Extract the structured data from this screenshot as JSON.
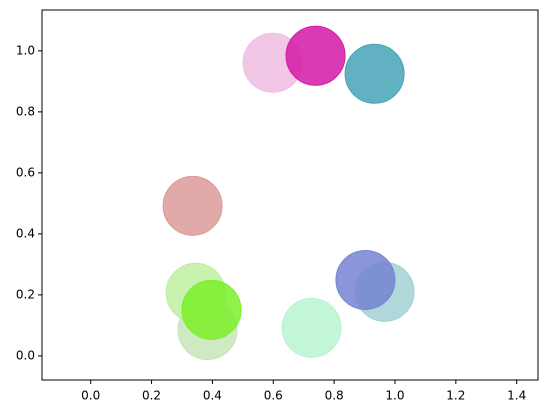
{
  "chart_data": {
    "type": "scatter",
    "x": [
      0.598,
      0.739,
      0.933,
      0.335,
      0.384,
      0.345,
      0.397,
      0.726,
      0.966,
      0.903
    ],
    "y": [
      0.961,
      0.984,
      0.925,
      0.492,
      0.085,
      0.207,
      0.151,
      0.092,
      0.21,
      0.249
    ],
    "colors": [
      "#f0bde0",
      "#d21aa4",
      "#45a3b8",
      "#dc9a98",
      "#c7e5b8",
      "#bfeea2",
      "#7bef29",
      "#b8f4cf",
      "#a2d1d5",
      "#7584d2"
    ],
    "xlim": [
      -0.16,
      1.47
    ],
    "ylim": [
      -0.079,
      1.134
    ],
    "xticks": [
      {
        "value": 0,
        "label": "0.0"
      },
      {
        "value": 0.2,
        "label": "0.2"
      },
      {
        "value": 0.4,
        "label": "0.4"
      },
      {
        "value": 0.6,
        "label": "0.6"
      },
      {
        "value": 0.8,
        "label": "0.8"
      },
      {
        "value": 1,
        "label": "1.0"
      },
      {
        "value": 1.2,
        "label": "1.2"
      },
      {
        "value": 1.4,
        "label": "1.4"
      }
    ],
    "yticks": [
      {
        "value": 0,
        "label": "0.0"
      },
      {
        "value": 0.2,
        "label": "0.2"
      },
      {
        "value": 0.4,
        "label": "0.4"
      },
      {
        "value": 0.6,
        "label": "0.6"
      },
      {
        "value": 0.8,
        "label": "0.8"
      },
      {
        "value": 1,
        "label": "1.0"
      }
    ],
    "grid": false
  }
}
